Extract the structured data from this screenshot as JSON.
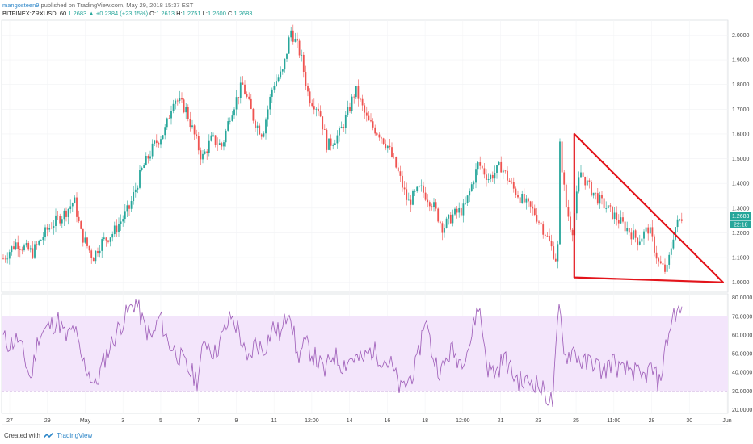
{
  "header": {
    "author": "mangosteen9",
    "published_text": "published on TradingView.com, May 29, 2018 15:37 EST",
    "symbol": "BITFINEX:ZRXUSD, 60",
    "last": "1.2683",
    "change": "+0.2384 (+23.15%)",
    "o_label": "O:",
    "o": "1.2613",
    "h_label": "H:",
    "h": "1.2751",
    "l_label": "L:",
    "l": "1.2600",
    "c_label": "C:",
    "c": "1.2683"
  },
  "footer": {
    "created_with": "Created with",
    "brand": "TradingView"
  },
  "colors": {
    "up": "#26a69a",
    "down": "#ef5350",
    "triangle": "#e3141b",
    "rsi_line": "#9b59b6",
    "rsi_band": "#f3e5fb"
  },
  "chart_data": [
    {
      "type": "candlestick",
      "y_ticks": [
        "2.0000",
        "1.9000",
        "1.8000",
        "1.7000",
        "1.6000",
        "1.5000",
        "1.4000",
        "1.3000",
        "1.2000",
        "1.1000",
        "1.0000"
      ],
      "ylim": [
        0.96,
        2.06
      ],
      "x_ticks": [
        "27",
        "29",
        "May",
        "3",
        "5",
        "7",
        "9",
        "11",
        "12:00",
        "14",
        "16",
        "18",
        "12:00",
        "21",
        "23",
        "25",
        "11:00",
        "28",
        "30",
        "Jun"
      ],
      "price_path": [
        [
          0,
          1.08
        ],
        [
          20,
          1.16
        ],
        [
          40,
          1.12
        ],
        [
          60,
          1.22
        ],
        [
          80,
          1.28
        ],
        [
          92,
          1.33
        ],
        [
          100,
          1.2
        ],
        [
          115,
          1.1
        ],
        [
          125,
          1.16
        ],
        [
          140,
          1.2
        ],
        [
          160,
          1.3
        ],
        [
          175,
          1.45
        ],
        [
          190,
          1.55
        ],
        [
          205,
          1.62
        ],
        [
          215,
          1.75
        ],
        [
          230,
          1.7
        ],
        [
          240,
          1.6
        ],
        [
          250,
          1.5
        ],
        [
          262,
          1.58
        ],
        [
          275,
          1.55
        ],
        [
          285,
          1.68
        ],
        [
          300,
          1.8
        ],
        [
          315,
          1.65
        ],
        [
          325,
          1.6
        ],
        [
          338,
          1.8
        ],
        [
          350,
          1.85
        ],
        [
          360,
          2.02
        ],
        [
          372,
          1.92
        ],
        [
          382,
          1.75
        ],
        [
          395,
          1.7
        ],
        [
          405,
          1.55
        ],
        [
          420,
          1.6
        ],
        [
          430,
          1.68
        ],
        [
          440,
          1.78
        ],
        [
          455,
          1.65
        ],
        [
          470,
          1.6
        ],
        [
          480,
          1.55
        ],
        [
          492,
          1.45
        ],
        [
          505,
          1.32
        ],
        [
          520,
          1.38
        ],
        [
          535,
          1.32
        ],
        [
          548,
          1.22
        ],
        [
          560,
          1.27
        ],
        [
          575,
          1.3
        ],
        [
          592,
          1.48
        ],
        [
          605,
          1.42
        ],
        [
          620,
          1.47
        ],
        [
          635,
          1.38
        ],
        [
          650,
          1.32
        ],
        [
          662,
          1.28
        ],
        [
          675,
          1.2
        ],
        [
          690,
          1.08
        ],
        [
          693,
          1.55
        ],
        [
          700,
          1.32
        ],
        [
          708,
          1.2
        ],
        [
          718,
          1.45
        ],
        [
          730,
          1.38
        ],
        [
          745,
          1.32
        ],
        [
          760,
          1.27
        ],
        [
          775,
          1.22
        ],
        [
          790,
          1.17
        ],
        [
          803,
          1.22
        ],
        [
          815,
          1.08
        ],
        [
          825,
          1.04
        ],
        [
          835,
          1.22
        ],
        [
          845,
          1.27
        ]
      ],
      "last_price": "1.2683",
      "last_label_small": "22:18",
      "annotation": {
        "type": "falling-wedge triangle",
        "points": [
          [
            23.7,
            1.6
          ],
          [
            23.7,
            1.02
          ],
          [
            31.0,
            1.0
          ]
        ],
        "note": "x in May-2018 day-of-month, y in USD"
      }
    },
    {
      "type": "line",
      "name": "RSI",
      "y_ticks": [
        "80.0000",
        "70.0000",
        "60.0000",
        "50.0000",
        "40.0000",
        "30.0000",
        "20.0000"
      ],
      "ylim": [
        18,
        82
      ],
      "band": [
        30,
        70
      ],
      "rsi_path": [
        [
          0,
          60
        ],
        [
          12,
          55
        ],
        [
          22,
          58
        ],
        [
          30,
          48
        ],
        [
          38,
          36
        ],
        [
          48,
          60
        ],
        [
          60,
          64
        ],
        [
          72,
          68
        ],
        [
          82,
          58
        ],
        [
          92,
          64
        ],
        [
          100,
          48
        ],
        [
          110,
          40
        ],
        [
          118,
          32
        ],
        [
          130,
          48
        ],
        [
          145,
          62
        ],
        [
          158,
          72
        ],
        [
          168,
          78
        ],
        [
          178,
          65
        ],
        [
          188,
          58
        ],
        [
          198,
          70
        ],
        [
          208,
          56
        ],
        [
          220,
          50
        ],
        [
          232,
          42
        ],
        [
          244,
          36
        ],
        [
          254,
          58
        ],
        [
          266,
          50
        ],
        [
          276,
          60
        ],
        [
          286,
          70
        ],
        [
          296,
          62
        ],
        [
          306,
          44
        ],
        [
          316,
          56
        ],
        [
          326,
          52
        ],
        [
          338,
          64
        ],
        [
          348,
          60
        ],
        [
          358,
          76
        ],
        [
          368,
          48
        ],
        [
          378,
          55
        ],
        [
          390,
          48
        ],
        [
          402,
          40
        ],
        [
          412,
          50
        ],
        [
          424,
          44
        ],
        [
          436,
          48
        ],
        [
          448,
          46
        ],
        [
          460,
          52
        ],
        [
          472,
          48
        ],
        [
          484,
          44
        ],
        [
          496,
          30
        ],
        [
          506,
          36
        ],
        [
          516,
          44
        ],
        [
          526,
          70
        ],
        [
          536,
          48
        ],
        [
          546,
          40
        ],
        [
          558,
          52
        ],
        [
          570,
          46
        ],
        [
          582,
          56
        ],
        [
          592,
          77
        ],
        [
          604,
          42
        ],
        [
          614,
          40
        ],
        [
          624,
          48
        ],
        [
          636,
          38
        ],
        [
          648,
          34
        ],
        [
          660,
          36
        ],
        [
          672,
          30
        ],
        [
          684,
          24
        ],
        [
          692,
          75
        ],
        [
          700,
          48
        ],
        [
          710,
          52
        ],
        [
          722,
          44
        ],
        [
          734,
          46
        ],
        [
          746,
          40
        ],
        [
          758,
          46
        ],
        [
          770,
          40
        ],
        [
          782,
          42
        ],
        [
          794,
          36
        ],
        [
          806,
          42
        ],
        [
          816,
          34
        ],
        [
          826,
          58
        ],
        [
          834,
          72
        ],
        [
          845,
          72
        ]
      ]
    }
  ]
}
